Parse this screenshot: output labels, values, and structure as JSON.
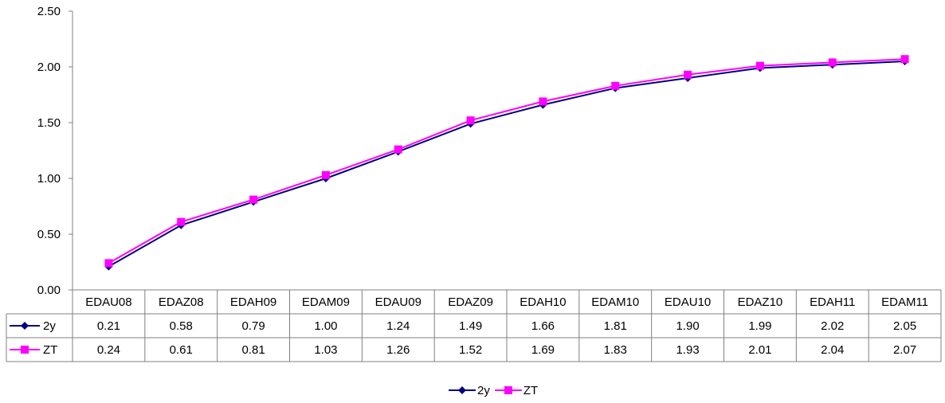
{
  "chart_data": {
    "type": "line",
    "categories": [
      "EDAU08",
      "EDAZ08",
      "EDAH09",
      "EDAM09",
      "EDAU09",
      "EDAZ09",
      "EDAH10",
      "EDAM10",
      "EDAU10",
      "EDAZ10",
      "EDAH11",
      "EDAM11"
    ],
    "series": [
      {
        "name": "2y",
        "color": "#000080",
        "marker": "diamond",
        "values": [
          0.21,
          0.58,
          0.79,
          1.0,
          1.24,
          1.49,
          1.66,
          1.81,
          1.9,
          1.99,
          2.02,
          2.05
        ],
        "labels": [
          "0.21",
          "0.58",
          "0.79",
          "1.00",
          "1.24",
          "1.49",
          "1.66",
          "1.81",
          "1.90",
          "1.99",
          "2.02",
          "2.05"
        ]
      },
      {
        "name": "ZT",
        "color": "#FF00FF",
        "marker": "square",
        "values": [
          0.24,
          0.61,
          0.81,
          1.03,
          1.26,
          1.52,
          1.69,
          1.83,
          1.93,
          2.01,
          2.04,
          2.07
        ],
        "labels": [
          "0.24",
          "0.61",
          "0.81",
          "1.03",
          "1.26",
          "1.52",
          "1.69",
          "1.83",
          "1.93",
          "2.01",
          "2.04",
          "2.07"
        ]
      }
    ],
    "ylim": [
      0,
      2.5
    ],
    "yticks": [
      "0.00",
      "0.50",
      "1.00",
      "1.50",
      "2.00",
      "2.50"
    ],
    "title": "",
    "xlabel": "",
    "ylabel": "",
    "grid": false,
    "legend": "bottom-center",
    "data_table": true
  }
}
